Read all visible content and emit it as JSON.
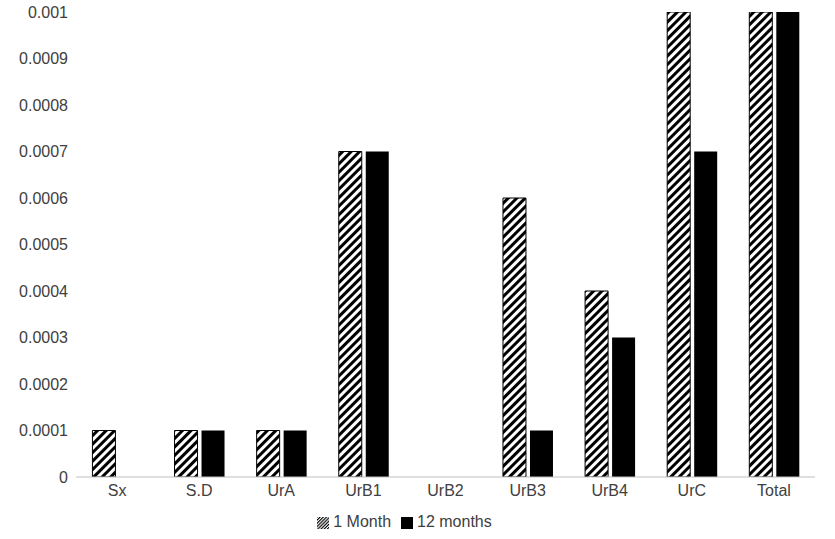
{
  "chart_data": {
    "type": "bar",
    "categories": [
      "Sx",
      "S.D",
      "UrA",
      "UrB1",
      "UrB2",
      "UrB3",
      "UrB4",
      "UrC",
      "Total"
    ],
    "series": [
      {
        "name": "1 Month",
        "color": "#000000",
        "values": [
          0.0001,
          0.0001,
          0.0001,
          0.0007,
          0,
          0.0006,
          0.0004,
          0.001,
          0.001
        ]
      },
      {
        "name": "12 months",
        "color": "#000000",
        "values": [
          0,
          0.0001,
          0.0001,
          0.0007,
          0,
          0.0001,
          0.0003,
          0.0007,
          0.001
        ]
      }
    ],
    "ylim": [
      0,
      0.001
    ],
    "yticks": [
      0,
      0.0001,
      0.0002,
      0.0003,
      0.0004,
      0.0005,
      0.0006,
      0.0007,
      0.0008,
      0.0009,
      0.001
    ],
    "grid": false,
    "legend": "bottom"
  }
}
